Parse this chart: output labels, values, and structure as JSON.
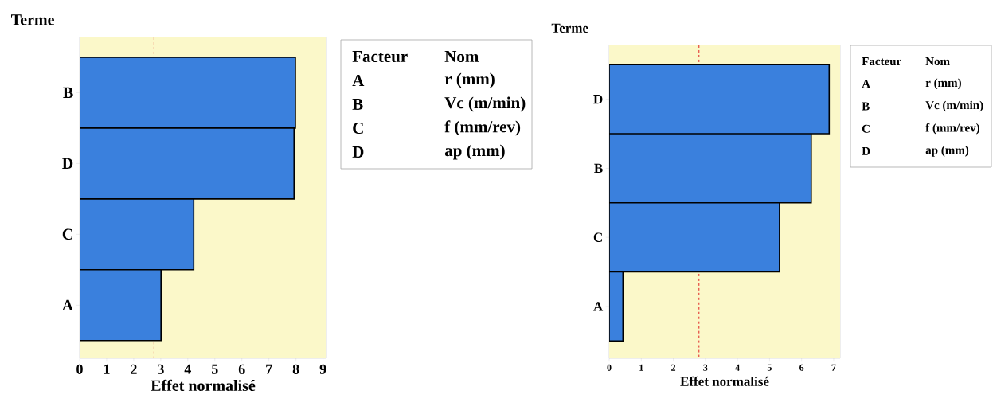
{
  "chart_data": [
    {
      "type": "bar",
      "orientation": "horizontal",
      "categories": [
        "B",
        "D",
        "C",
        "A"
      ],
      "values": [
        7.98,
        7.93,
        4.22,
        3.01
      ],
      "color": "#3a80dd",
      "xlim": [
        0,
        9.13
      ],
      "xticks": [
        0,
        1,
        2,
        3,
        4,
        5,
        6,
        7,
        8,
        9
      ],
      "xlabel": "Effet normalisé",
      "ylabel": "Terme",
      "ref_lines": [
        {
          "axis": "x",
          "value": 2.75,
          "color": "#e02020",
          "line_style": "dashed"
        }
      ],
      "bands": [
        {
          "axis": "x",
          "from": 0,
          "to": 9.13,
          "color": "#fbf8c9"
        }
      ]
    },
    {
      "type": "other",
      "annotations": [
        "Facteur",
        "Nom",
        "A",
        "r (mm)",
        "B",
        "Vc (m/min)",
        "C",
        "f (mm/rev)",
        "D",
        "ap (mm)"
      ]
    },
    {
      "type": "bar",
      "orientation": "horizontal",
      "categories": [
        "D",
        "B",
        "C",
        "A"
      ],
      "values": [
        6.86,
        6.3,
        5.31,
        0.43
      ],
      "color": "#3a80dd",
      "xlim": [
        0,
        7.2
      ],
      "xticks": [
        0,
        1,
        2,
        3,
        4,
        5,
        6,
        7
      ],
      "xlabel": "Effet normalisé",
      "ylabel": "Terme",
      "ref_lines": [
        {
          "axis": "x",
          "value": 2.8,
          "color": "#e02020",
          "line_style": "dashed"
        }
      ],
      "bands": [
        {
          "axis": "x",
          "from": 0,
          "to": 7.2,
          "color": "#fbf8c9"
        }
      ]
    },
    {
      "type": "other",
      "annotations": [
        "Facteur",
        "Nom",
        "A",
        "r (mm)",
        "B",
        "Vc (m/min)",
        "C",
        "f (mm/rev)",
        "D",
        "ap (mm)"
      ]
    }
  ]
}
